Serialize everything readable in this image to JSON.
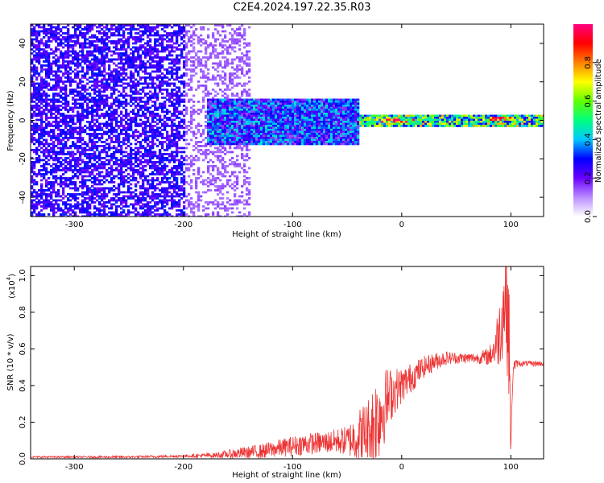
{
  "title": "C2E4.2024.197.22.35.R03",
  "chart_data": [
    {
      "type": "heatmap",
      "xlabel": "Height of straight line (km)",
      "ylabel": "Frequency (Hz)",
      "xlim": [
        -340,
        130
      ],
      "ylim": [
        -50,
        50
      ],
      "xticks": [
        -300,
        -200,
        -100,
        0,
        100
      ],
      "yticks": [
        -40,
        -20,
        0,
        20,
        40
      ],
      "colorbar": {
        "label": "Normalized spectral amplitude",
        "range": [
          0.0,
          1.0
        ],
        "ticks": [
          "0.0",
          "0.2",
          "0.4",
          "0.6",
          "0.8"
        ],
        "colors": [
          "#ffffff",
          "#b98cff",
          "#6a00ff",
          "#0000ff",
          "#00c8ff",
          "#00ff80",
          "#60ff00",
          "#ffff00",
          "#ff8000",
          "#ff0000",
          "#ff0080"
        ]
      },
      "features": [
        {
          "x_range": [
            -340,
            -200
          ],
          "band_hz": [
            -50,
            50
          ],
          "amplitude": 0.25,
          "desc_level": "broadband"
        },
        {
          "x_range": [
            -200,
            -140
          ],
          "band_hz": [
            -50,
            50
          ],
          "amplitude": 0.12
        },
        {
          "x_range": [
            -180,
            -40
          ],
          "band_hz": [
            -12,
            12
          ],
          "amplitude": 0.35
        },
        {
          "x_range": [
            -40,
            130
          ],
          "band_hz": [
            -3,
            3
          ],
          "amplitude": 0.6
        },
        {
          "x_range": [
            -20,
            10
          ],
          "band_hz": [
            -1,
            1
          ],
          "amplitude": 0.95
        },
        {
          "x_range": [
            80,
            100
          ],
          "band_hz": [
            0,
            2
          ],
          "amplitude": 0.95
        }
      ]
    },
    {
      "type": "line",
      "xlabel": "Height of straight line (km)",
      "ylabel": "SNR (10 * v/v)",
      "y_multiplier": "(x10",
      "y_multiplier_exp": "4",
      "y_multiplier_close": ")",
      "xlim": [
        -340,
        130
      ],
      "ylim": [
        0,
        1.05
      ],
      "xticks": [
        -300,
        -200,
        -100,
        0,
        100
      ],
      "yticks": [
        "0.0",
        "0.2",
        "0.4",
        "0.6",
        "0.8",
        "1.0"
      ],
      "series": [
        {
          "color": "#ee3333",
          "x": [
            -340,
            -300,
            -250,
            -200,
            -170,
            -150,
            -130,
            -110,
            -90,
            -70,
            -50,
            -40,
            -30,
            -25,
            -20,
            -15,
            -10,
            -5,
            0,
            10,
            20,
            30,
            40,
            50,
            60,
            70,
            80,
            85,
            90,
            95,
            98,
            100,
            102,
            105,
            110,
            120,
            130
          ],
          "y": [
            0.01,
            0.01,
            0.01,
            0.015,
            0.02,
            0.03,
            0.04,
            0.06,
            0.08,
            0.09,
            0.1,
            0.12,
            0.15,
            0.2,
            0.25,
            0.3,
            0.35,
            0.38,
            0.4,
            0.45,
            0.5,
            0.53,
            0.55,
            0.55,
            0.55,
            0.55,
            0.56,
            0.6,
            0.7,
            0.9,
            0.75,
            0.05,
            0.5,
            0.52,
            0.52,
            0.52,
            0.52
          ],
          "noise_amplitude": [
            0.005,
            0.005,
            0.006,
            0.008,
            0.015,
            0.03,
            0.04,
            0.05,
            0.06,
            0.06,
            0.08,
            0.15,
            0.2,
            0.25,
            0.25,
            0.2,
            0.15,
            0.12,
            0.1,
            0.08,
            0.06,
            0.05,
            0.04,
            0.03,
            0.03,
            0.03,
            0.05,
            0.1,
            0.2,
            0.3,
            0.4,
            0.05,
            0.05,
            0.02,
            0.015,
            0.015,
            0.015
          ]
        }
      ]
    }
  ]
}
